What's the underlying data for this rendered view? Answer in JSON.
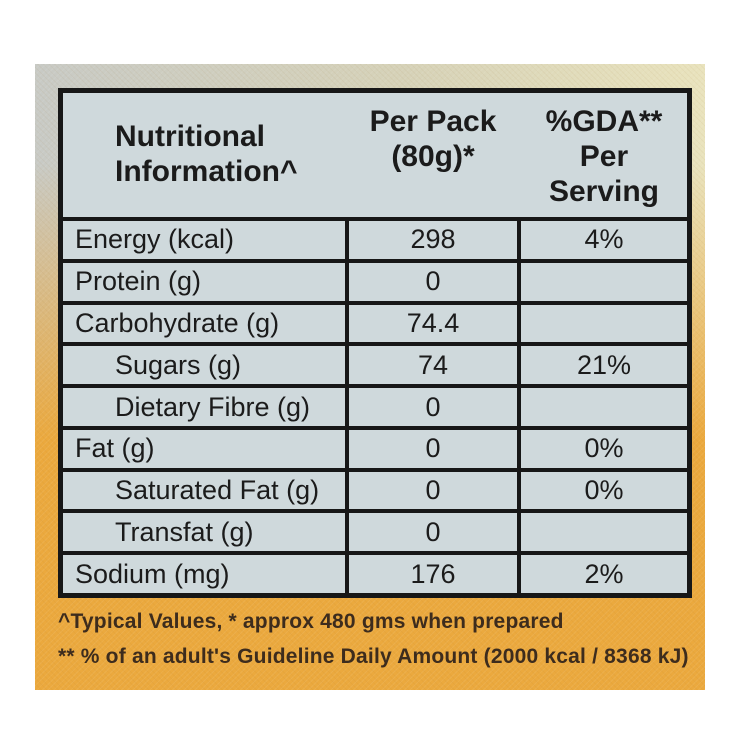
{
  "colors": {
    "cell_background": "#cfd9dc",
    "table_border": "#171717",
    "table_text": "#1b1b1b",
    "footnote_text": "#3d2c1d",
    "package_orange": "#eba93e",
    "package_gray": "#c8cac5",
    "package_cream": "#e9e3bd"
  },
  "label": {
    "header": {
      "column1_lines": [
        "Nutritional",
        "Information^"
      ],
      "column2_lines": [
        "Per Pack",
        "(80g)*"
      ],
      "column3_lines": [
        "%GDA**",
        "Per",
        "Serving"
      ]
    },
    "rows": [
      {
        "label": "Energy (kcal)",
        "per_pack": "298",
        "gda_per_serving": "4%",
        "sub_item": false
      },
      {
        "label": "Protein (g)",
        "per_pack": "0",
        "gda_per_serving": "",
        "sub_item": false
      },
      {
        "label": "Carbohydrate (g)",
        "per_pack": "74.4",
        "gda_per_serving": "",
        "sub_item": false
      },
      {
        "label": "Sugars (g)",
        "per_pack": "74",
        "gda_per_serving": "21%",
        "sub_item": true
      },
      {
        "label": "Dietary Fibre (g)",
        "per_pack": "0",
        "gda_per_serving": "",
        "sub_item": true
      },
      {
        "label": "Fat (g)",
        "per_pack": "0",
        "gda_per_serving": "0%",
        "sub_item": false
      },
      {
        "label": "Saturated Fat (g)",
        "per_pack": "0",
        "gda_per_serving": "0%",
        "sub_item": true
      },
      {
        "label": "Transfat (g)",
        "per_pack": "0",
        "gda_per_serving": "",
        "sub_item": true
      },
      {
        "label": "Sodium (mg)",
        "per_pack": "176",
        "gda_per_serving": "2%",
        "sub_item": false
      }
    ],
    "footnotes": [
      "^Typical Values,  * approx 480 gms when prepared",
      "** % of an adult's Guideline Daily Amount (2000 kcal / 8368 kJ)"
    ]
  }
}
